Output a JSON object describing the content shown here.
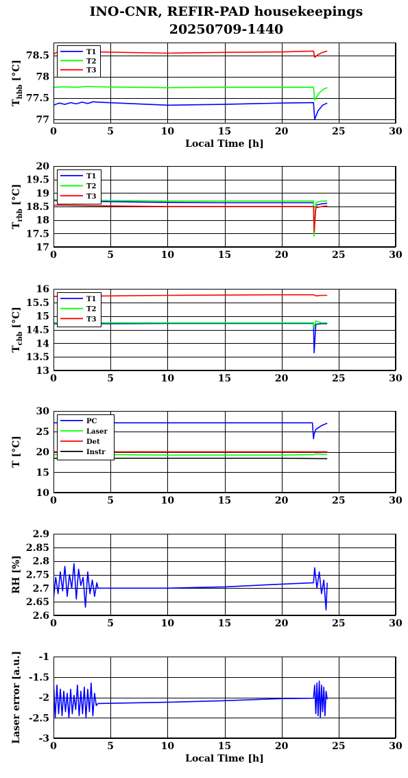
{
  "figure": {
    "title_line1": "INO-CNR, REFIR-PAD housekeepings",
    "title_line2": "20250709-1440"
  },
  "colors": {
    "blue": "#0000ff",
    "green": "#00ff00",
    "red": "#ff0000",
    "black": "#000000"
  },
  "chart_data": [
    {
      "type": "line",
      "ylabel_main": "T",
      "ylabel_sub": "hbb",
      "ylabel_unit": "[°C]",
      "xlabel": "Local Time [h]",
      "xlim": [
        0,
        30
      ],
      "ylim": [
        76.9,
        78.8
      ],
      "xticks": [
        0,
        5,
        10,
        15,
        20,
        25,
        30
      ],
      "yticks": [
        77,
        77.5,
        78,
        78.5
      ],
      "ytick_labels": [
        "77",
        "77.5",
        "78",
        "78.5"
      ],
      "grid": true,
      "legend_position": "top-left",
      "series": [
        {
          "name": "T1",
          "color": "blue",
          "x": [
            0,
            0.5,
            1,
            1.5,
            2,
            2.5,
            3,
            3.5,
            3.9,
            10,
            15,
            20,
            22.8,
            22.9,
            23.2,
            23.6,
            24
          ],
          "y": [
            77.33,
            77.38,
            77.35,
            77.39,
            77.36,
            77.4,
            77.37,
            77.41,
            77.4,
            77.33,
            77.35,
            77.38,
            77.39,
            77.0,
            77.2,
            77.33,
            77.38
          ]
        },
        {
          "name": "T2",
          "color": "green",
          "x": [
            0,
            1,
            2,
            3,
            3.9,
            10,
            15,
            20,
            22.8,
            22.9,
            23.3,
            23.7,
            24
          ],
          "y": [
            77.75,
            77.76,
            77.75,
            77.77,
            77.76,
            77.74,
            77.75,
            77.75,
            77.75,
            77.45,
            77.62,
            77.71,
            77.74
          ]
        },
        {
          "name": "T3",
          "color": "red",
          "x": [
            0,
            0.5,
            1,
            2,
            3,
            3.9,
            10,
            15,
            20,
            22.8,
            22.9,
            23.2,
            23.6,
            24
          ],
          "y": [
            78.53,
            78.6,
            78.56,
            78.6,
            78.58,
            78.58,
            78.55,
            78.57,
            78.58,
            78.6,
            78.45,
            78.52,
            78.57,
            78.6
          ]
        }
      ]
    },
    {
      "type": "line",
      "ylabel_main": "T",
      "ylabel_sub": "rbb",
      "ylabel_unit": "[°C]",
      "xlabel": "",
      "xlim": [
        0,
        30
      ],
      "ylim": [
        17,
        20
      ],
      "xticks": [
        0,
        5,
        10,
        15,
        20,
        25,
        30
      ],
      "yticks": [
        17,
        17.5,
        18,
        18.5,
        19,
        19.5,
        20
      ],
      "ytick_labels": [
        "17",
        "17.5",
        "18",
        "18.5",
        "19",
        "19.5",
        "20"
      ],
      "grid": true,
      "legend_position": "top-left",
      "series": [
        {
          "name": "T1",
          "color": "blue",
          "x": [
            0,
            5,
            10,
            15,
            20,
            22.8,
            22.85,
            23.0,
            23.5,
            24
          ],
          "y": [
            18.72,
            18.68,
            18.65,
            18.64,
            18.64,
            18.64,
            17.55,
            18.55,
            18.6,
            18.62
          ]
        },
        {
          "name": "T2",
          "color": "green",
          "x": [
            0,
            5,
            10,
            15,
            20,
            22.8,
            22.85,
            23.0,
            23.5,
            24
          ],
          "y": [
            18.75,
            18.72,
            18.7,
            18.7,
            18.7,
            18.7,
            17.4,
            18.65,
            18.7,
            18.7
          ]
        },
        {
          "name": "T3",
          "color": "red",
          "x": [
            0,
            5,
            10,
            15,
            20,
            22.8,
            22.85,
            23.0,
            23.5,
            24
          ],
          "y": [
            18.55,
            18.52,
            18.5,
            18.5,
            18.5,
            18.5,
            17.55,
            18.45,
            18.5,
            18.52
          ]
        }
      ]
    },
    {
      "type": "line",
      "ylabel_main": "T",
      "ylabel_sub": "cbb",
      "ylabel_unit": "[°C]",
      "xlabel": "",
      "xlim": [
        0,
        30
      ],
      "ylim": [
        13,
        16
      ],
      "xticks": [
        0,
        5,
        10,
        15,
        20,
        25,
        30
      ],
      "yticks": [
        13,
        13.5,
        14,
        14.5,
        15,
        15.5,
        16
      ],
      "ytick_labels": [
        "13",
        "13.5",
        "14",
        "14.5",
        "15",
        "15.5",
        "16"
      ],
      "grid": true,
      "legend_position": "top-left",
      "series": [
        {
          "name": "T1",
          "color": "blue",
          "x": [
            0,
            5,
            10,
            15,
            20,
            22.8,
            22.85,
            23.0,
            23.5,
            24
          ],
          "y": [
            14.72,
            14.72,
            14.73,
            14.73,
            14.73,
            14.73,
            13.65,
            14.7,
            14.72,
            14.72
          ]
        },
        {
          "name": "T2",
          "color": "green",
          "x": [
            0,
            5,
            10,
            15,
            20,
            22.8,
            22.85,
            23.0,
            23.5,
            24
          ],
          "y": [
            14.75,
            14.75,
            14.75,
            14.75,
            14.75,
            14.75,
            14.55,
            14.82,
            14.75,
            14.75
          ]
        },
        {
          "name": "T3",
          "color": "red",
          "x": [
            0,
            5,
            10,
            15,
            20,
            22.8,
            22.85,
            23.0,
            23.5,
            24
          ],
          "y": [
            15.72,
            15.74,
            15.76,
            15.77,
            15.78,
            15.78,
            15.78,
            15.74,
            15.76,
            15.76
          ]
        }
      ]
    },
    {
      "type": "line",
      "ylabel_main": "T [°C]",
      "ylabel_sub": "",
      "ylabel_unit": "",
      "xlabel": "",
      "xlim": [
        0,
        30
      ],
      "ylim": [
        10,
        30
      ],
      "xticks": [
        0,
        5,
        10,
        15,
        20,
        25,
        30
      ],
      "yticks": [
        10,
        15,
        20,
        25,
        30
      ],
      "ytick_labels": [
        "10",
        "15",
        "20",
        "25",
        "30"
      ],
      "grid": true,
      "legend_position": "top-left",
      "series": [
        {
          "name": "PC",
          "color": "blue",
          "x": [
            0,
            5,
            10,
            15,
            20,
            22.7,
            22.8,
            22.85,
            23.0,
            23.5,
            24
          ],
          "y": [
            27.1,
            27.1,
            27.1,
            27.1,
            27.1,
            27.1,
            23.2,
            24.3,
            25.5,
            26.4,
            27.0
          ]
        },
        {
          "name": "Laser",
          "color": "green",
          "x": [
            0,
            5,
            10,
            15,
            20,
            22.8,
            23.0,
            24
          ],
          "y": [
            19.3,
            19.3,
            19.2,
            19.2,
            19.2,
            19.3,
            19.5,
            19.3
          ]
        },
        {
          "name": "Det",
          "color": "red",
          "x": [
            0,
            5,
            10,
            15,
            20,
            24
          ],
          "y": [
            20.0,
            20.0,
            20.0,
            20.0,
            20.0,
            20.0
          ]
        },
        {
          "name": "Instr",
          "color": "black",
          "x": [
            0,
            5,
            10,
            15,
            20,
            24
          ],
          "y": [
            18.4,
            18.4,
            18.4,
            18.4,
            18.4,
            18.3
          ]
        }
      ]
    },
    {
      "type": "line",
      "ylabel_main": "RH [%]",
      "ylabel_sub": "",
      "ylabel_unit": "",
      "xlabel": "",
      "xlim": [
        0,
        30
      ],
      "ylim": [
        2.6,
        2.9
      ],
      "xticks": [
        0,
        5,
        10,
        15,
        20,
        25,
        30
      ],
      "yticks": [
        2.6,
        2.65,
        2.7,
        2.75,
        2.8,
        2.85,
        2.9
      ],
      "ytick_labels": [
        "2.6",
        "2.65",
        "2.7",
        "2.75",
        "2.8",
        "2.85",
        "2.9"
      ],
      "grid": true,
      "legend_position": "none",
      "series": [
        {
          "color": "blue",
          "x": [
            0,
            0.2,
            0.4,
            0.6,
            0.8,
            1.0,
            1.2,
            1.4,
            1.6,
            1.8,
            2.0,
            2.2,
            2.4,
            2.6,
            2.8,
            3.0,
            3.2,
            3.4,
            3.6,
            3.8,
            3.9,
            10,
            15,
            20,
            22.8,
            22.9,
            23.1,
            23.3,
            23.5,
            23.7,
            23.9,
            24
          ],
          "y": [
            2.66,
            2.74,
            2.68,
            2.76,
            2.69,
            2.78,
            2.67,
            2.75,
            2.7,
            2.79,
            2.66,
            2.77,
            2.71,
            2.74,
            2.63,
            2.76,
            2.68,
            2.73,
            2.67,
            2.72,
            2.7,
            2.7,
            2.705,
            2.715,
            2.72,
            2.775,
            2.7,
            2.76,
            2.68,
            2.73,
            2.62,
            2.72
          ]
        }
      ]
    },
    {
      "type": "line",
      "ylabel_main": "Laser error [a.u.]",
      "ylabel_sub": "",
      "ylabel_unit": "",
      "xlabel": "Local Time [h]",
      "xlim": [
        0,
        30
      ],
      "ylim": [
        -3,
        -1
      ],
      "xticks": [
        0,
        5,
        10,
        15,
        20,
        25,
        30
      ],
      "yticks": [
        -3,
        -2.5,
        -2,
        -1.5,
        -1
      ],
      "ytick_labels": [
        "-3",
        "-2.5",
        "-2",
        "-1.5",
        "-1"
      ],
      "grid": true,
      "legend_position": "none",
      "series": [
        {
          "color": "blue",
          "x": [
            0,
            0.15,
            0.3,
            0.45,
            0.6,
            0.75,
            0.9,
            1.05,
            1.2,
            1.35,
            1.5,
            1.65,
            1.8,
            1.95,
            2.1,
            2.25,
            2.4,
            2.55,
            2.7,
            2.85,
            3.0,
            3.15,
            3.3,
            3.45,
            3.6,
            3.75,
            3.9,
            10,
            15,
            20,
            22.8,
            22.9,
            23.0,
            23.1,
            23.2,
            23.3,
            23.4,
            23.5,
            23.6,
            23.7,
            23.8,
            23.9,
            24
          ],
          "y": [
            -1.6,
            -2.5,
            -1.7,
            -2.4,
            -1.8,
            -2.45,
            -1.85,
            -2.35,
            -1.9,
            -2.5,
            -1.8,
            -2.4,
            -1.95,
            -2.3,
            -1.7,
            -2.45,
            -1.85,
            -2.4,
            -1.75,
            -2.5,
            -1.8,
            -2.35,
            -1.65,
            -2.45,
            -1.9,
            -2.2,
            -2.15,
            -2.12,
            -2.08,
            -2.03,
            -2.02,
            -1.7,
            -2.4,
            -1.65,
            -2.45,
            -1.6,
            -2.5,
            -1.7,
            -2.35,
            -1.75,
            -2.45,
            -1.85,
            -2.05
          ]
        }
      ]
    }
  ]
}
